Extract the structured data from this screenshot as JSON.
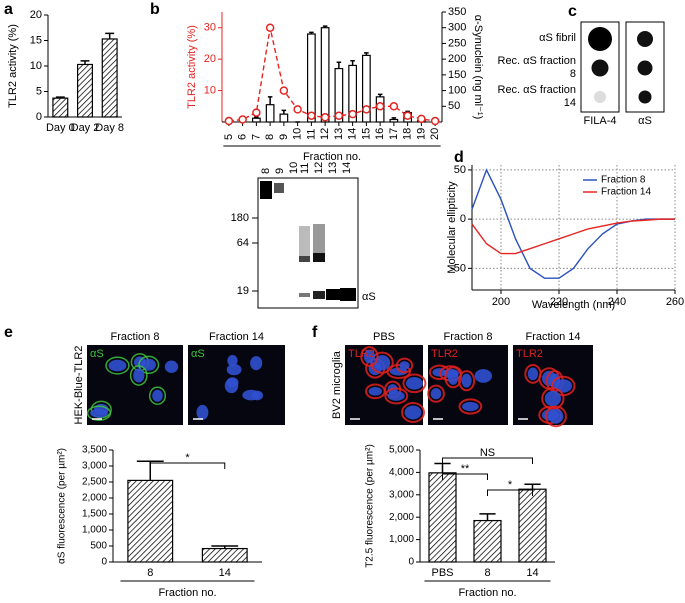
{
  "chart_data": [
    {
      "panel": "a",
      "type": "bar",
      "ylabel": "TLR2 activity (%)",
      "categories": [
        "Day 0",
        "Day 2",
        "Day 8"
      ],
      "values": [
        3.7,
        10.3,
        15.3
      ],
      "errors": [
        0.2,
        0.7,
        1.1
      ],
      "color": "#000000",
      "bar_fill": "hatched",
      "ylim": [
        0,
        20
      ],
      "yticks": [
        0,
        5,
        10,
        15,
        20
      ]
    },
    {
      "panel": "b",
      "type": "combo",
      "xlabel": "Fraction no.",
      "ylabel": "TLR2 activity (%)",
      "y2label": "α-Synuclein (ng ml⁻¹)",
      "categories": [
        "5",
        "6",
        "7",
        "8",
        "9",
        "10",
        "11",
        "12",
        "13",
        "14",
        "15",
        "16",
        "17",
        "18",
        "19",
        "20"
      ],
      "ylim": [
        0,
        35
      ],
      "yticks": [
        10,
        20,
        30
      ],
      "y2lim": [
        0,
        350
      ],
      "y2ticks": [
        50,
        100,
        150,
        200,
        250,
        300,
        350
      ],
      "series": [
        {
          "type": "bar",
          "axis": "y2",
          "color": "#000000",
          "bar_fill": "open",
          "values": [
            0,
            0,
            12,
            55,
            25,
            0,
            280,
            300,
            170,
            180,
            212,
            80,
            8,
            30,
            4,
            0
          ],
          "errors": [
            0,
            0,
            3,
            25,
            12,
            0,
            5,
            5,
            20,
            15,
            8,
            8,
            5,
            4,
            2,
            0
          ]
        },
        {
          "type": "line",
          "color": "#e52521",
          "line_style": "dashed",
          "marker": "open-circle",
          "values": [
            0.3,
            0.8,
            3,
            30,
            10,
            4,
            2,
            1.5,
            2,
            2.5,
            4,
            5,
            5,
            2,
            1,
            0.3
          ]
        }
      ]
    },
    {
      "panel": "d",
      "type": "line",
      "xlabel": "Wavelength (nm)",
      "ylabel": "Molecular ellipticity",
      "x": [
        190,
        195,
        200,
        205,
        210,
        215,
        220,
        225,
        230,
        235,
        240,
        245,
        250,
        255,
        260
      ],
      "xlim": [
        190,
        260
      ],
      "xticks": [
        200,
        220,
        240,
        260
      ],
      "ylim": [
        -72,
        55
      ],
      "yticks": [
        -50,
        0,
        50
      ],
      "grid": true,
      "legend": "upper right",
      "series": [
        {
          "name": "Fraction 8",
          "color": "#2a52be",
          "values": [
            10,
            50,
            20,
            -20,
            -50,
            -60,
            -60,
            -50,
            -30,
            -15,
            -5,
            -2,
            0,
            0,
            0
          ]
        },
        {
          "name": "Fraction 14",
          "color": "#e52521",
          "values": [
            -5,
            -25,
            -35,
            -35,
            -30,
            -25,
            -20,
            -15,
            -10,
            -7,
            -4,
            -2,
            -1,
            0,
            0
          ]
        }
      ]
    },
    {
      "panel": "e",
      "type": "bar",
      "xlabel": "Fraction no.",
      "ylabel": "αS fluorescence (per µm²)",
      "categories": [
        "8",
        "14"
      ],
      "values": [
        2550,
        420
      ],
      "errors": [
        600,
        80
      ],
      "color": "#000000",
      "bar_fill": "hatched",
      "ylim": [
        0,
        3500
      ],
      "yticks": [
        0,
        500,
        {
          "value": 1000,
          "label": "1,000"
        },
        {
          "value": 1500,
          "label": "1,500"
        },
        {
          "value": 2000,
          "label": "2,000"
        },
        {
          "value": 2500,
          "label": "2,500"
        },
        {
          "value": 3000,
          "label": "3,000"
        },
        {
          "value": 3500,
          "label": "3,500"
        }
      ],
      "significance": [
        "*"
      ]
    },
    {
      "panel": "f",
      "type": "bar",
      "xlabel": "Fraction no.",
      "ylabel": "T2.5 fluorescence (per µm²)",
      "categories": [
        "PBS",
        "8",
        "14"
      ],
      "values": [
        3980,
        1850,
        3250
      ],
      "errors": [
        420,
        300,
        220
      ],
      "color": "#000000",
      "bar_fill": "hatched",
      "ylim": [
        0,
        5000
      ],
      "yticks": [
        0,
        {
          "value": 1000,
          "label": "1,000"
        },
        {
          "value": 2000,
          "label": "2,000"
        },
        {
          "value": 3000,
          "label": "3,000"
        },
        {
          "value": 4000,
          "label": "4,000"
        },
        {
          "value": 5000,
          "label": "5,000"
        }
      ],
      "significance": [
        "NS",
        "**",
        "*"
      ]
    }
  ],
  "western_blot": {
    "lanes": [
      "8",
      "9",
      "10",
      "11",
      "12",
      "13",
      "14"
    ],
    "markers": [
      "180",
      "64",
      "19"
    ],
    "band_label": "αS"
  },
  "dot_blot": {
    "panel": "c",
    "rows": [
      "αS fibril",
      "Rec. αS fraction 8",
      "Rec. αS fraction 14"
    ],
    "columns": [
      "FILA-4",
      "αS"
    ]
  },
  "micrographs": [
    {
      "row_label": "HEK-Blue-TLR2",
      "stain": "αS",
      "stain_color": "#3ec43e",
      "columns": [
        "Fraction 8",
        "Fraction 14"
      ]
    },
    {
      "row_label": "BV2 microglia",
      "stain": "TLR2",
      "stain_color": "#e02020",
      "columns": [
        "PBS",
        "Fraction 8",
        "Fraction 14"
      ]
    }
  ]
}
